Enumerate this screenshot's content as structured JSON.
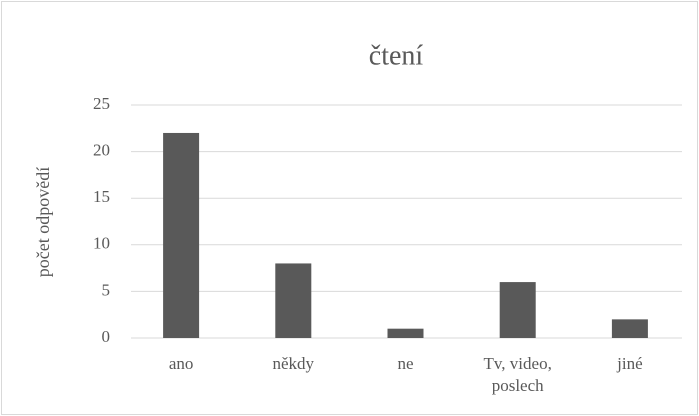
{
  "chart_data": {
    "type": "bar",
    "title": "čtení",
    "ylabel": "počet odpovědí",
    "categories": [
      "ano",
      "někdy",
      "ne",
      "Tv, video, poslech",
      "jiné"
    ],
    "values": [
      22,
      8,
      1,
      6,
      2
    ],
    "color": "#595959",
    "ylim": [
      0,
      25
    ],
    "yticks": [
      0,
      5,
      10,
      15,
      20,
      25
    ],
    "grid": true
  }
}
